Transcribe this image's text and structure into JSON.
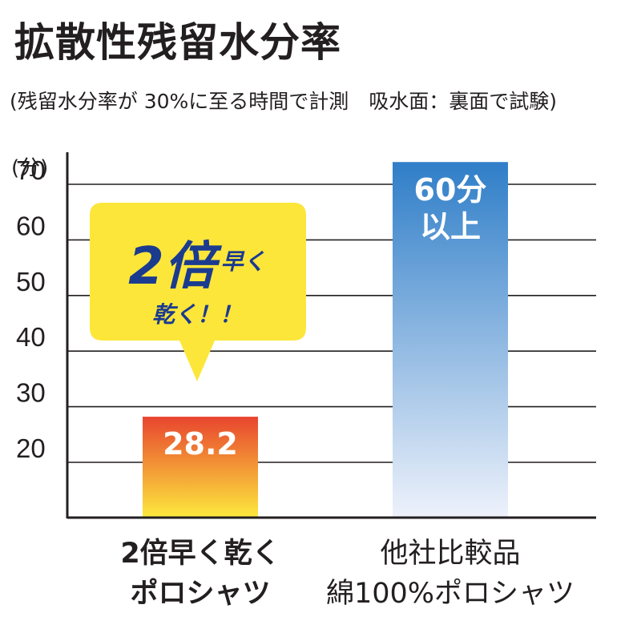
{
  "title": "拡散性残留水分率",
  "subtitle": "(残留水分率が 30%に至る時間で計測　吸水面：裏面で試験)",
  "callout": {
    "line1_big": "2倍",
    "line1_small": "早く",
    "line2": "乾く！！",
    "fill_color": "#fde63a",
    "text_color": "#1b3b8f"
  },
  "colors": {
    "bar_warm_top": "#e8452f",
    "bar_warm_bottom": "#fde93d",
    "bar_cool_top": "#2f7ec8",
    "bar_cool_bottom": "#eef2fb",
    "grid": "#231f20",
    "axis": "#231f20"
  },
  "chart_data": {
    "type": "bar",
    "unit_label": "(分)",
    "yticks": [
      20,
      30,
      40,
      50,
      60,
      70
    ],
    "ylim": [
      10,
      74
    ],
    "grid": true,
    "categories": [
      [
        "2倍早く乾く",
        "ポロシャツ"
      ],
      [
        "他社比較品",
        "綿100%ポロシャツ"
      ]
    ],
    "values": [
      28.2,
      74
    ],
    "value_labels": [
      [
        "28.2"
      ],
      [
        "60分",
        "以上"
      ]
    ],
    "bar_styles": [
      "warm",
      "cool"
    ]
  }
}
